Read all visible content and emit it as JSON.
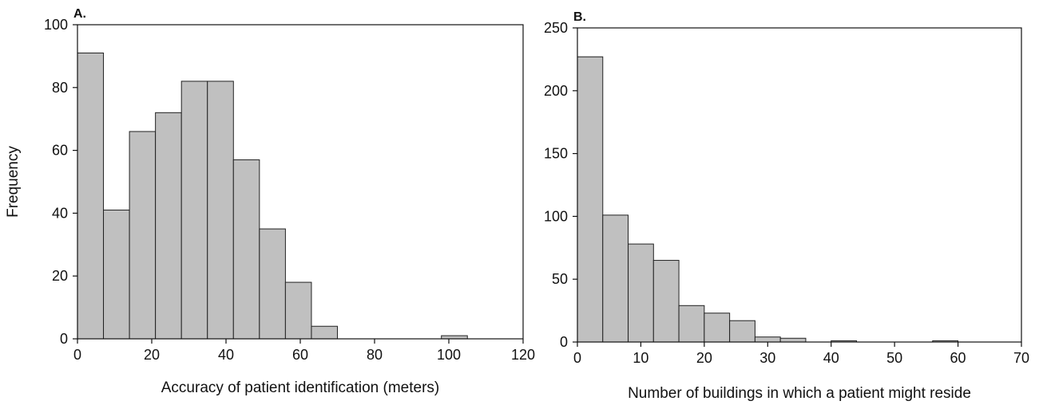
{
  "chart_data": [
    {
      "type": "bar",
      "panel_label": "A.",
      "xlabel": "Accuracy of patient identification (meters)",
      "ylabel": "Frequency",
      "xlim": [
        0,
        120
      ],
      "ylim": [
        0,
        100
      ],
      "x_ticks": [
        0,
        20,
        40,
        60,
        80,
        100,
        120
      ],
      "y_ticks": [
        0,
        20,
        40,
        60,
        80,
        100
      ],
      "bin_edges": [
        0,
        7,
        14,
        21,
        28,
        35,
        42,
        49,
        56,
        63,
        70,
        77,
        84,
        91,
        98,
        105,
        112
      ],
      "values": [
        91,
        41,
        66,
        72,
        82,
        82,
        57,
        35,
        18,
        4,
        0,
        0,
        0,
        0,
        1,
        0
      ],
      "bar_color": "#c0c0c0",
      "grid": false
    },
    {
      "type": "bar",
      "panel_label": "B.",
      "xlabel": "Number of buildings in which a patient might reside",
      "ylabel": "",
      "xlim": [
        0,
        70
      ],
      "ylim": [
        0,
        250
      ],
      "x_ticks": [
        0,
        10,
        20,
        30,
        40,
        50,
        60,
        70
      ],
      "y_ticks": [
        0,
        50,
        100,
        150,
        200,
        250
      ],
      "bin_edges": [
        0,
        4,
        8,
        12,
        16,
        20,
        24,
        28,
        32,
        36,
        40,
        44,
        48,
        52,
        56,
        60,
        64,
        68
      ],
      "values": [
        227,
        101,
        78,
        65,
        29,
        23,
        17,
        4,
        3,
        0,
        1,
        0,
        0,
        0,
        1,
        0,
        0
      ],
      "bar_color": "#c0c0c0",
      "grid": false
    }
  ]
}
